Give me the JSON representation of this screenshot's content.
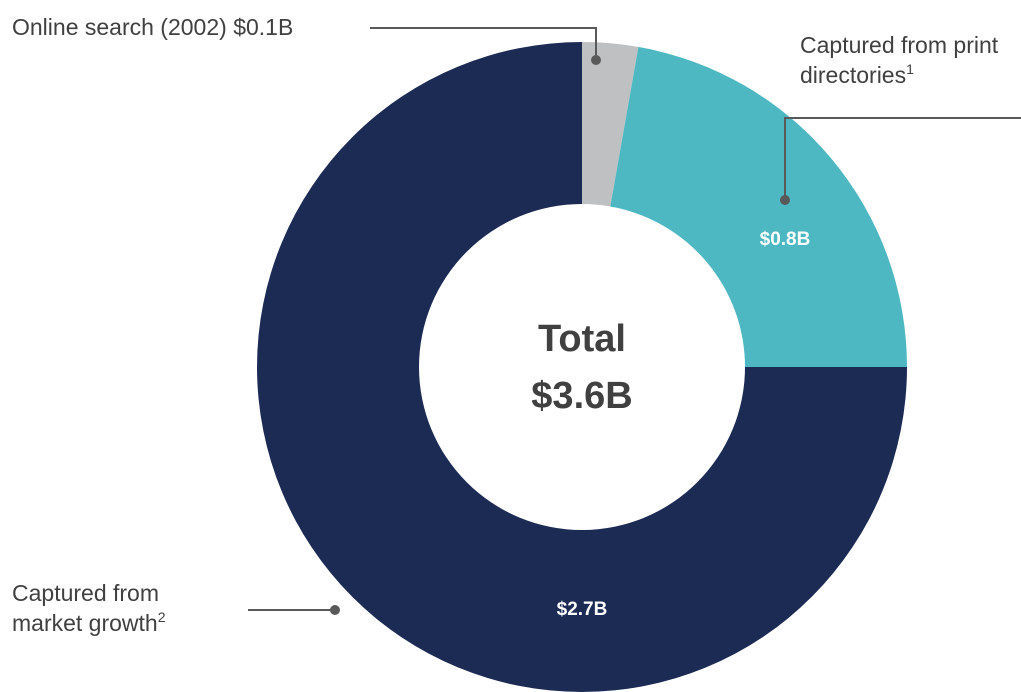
{
  "chart_data": {
    "type": "donut",
    "categories": [
      "Online search (2002)",
      "Captured from print directories",
      "Captured from market growth"
    ],
    "values": [
      0.1,
      0.8,
      2.7
    ],
    "value_labels": [
      "$0.1B",
      "$0.8B",
      "$2.7B"
    ],
    "notes": [
      null,
      "1",
      "2"
    ],
    "colors": [
      "#bfc0c2",
      "#4db8c2",
      "#1c2b54"
    ],
    "center_title": "Total",
    "center_value": "$3.6B"
  }
}
